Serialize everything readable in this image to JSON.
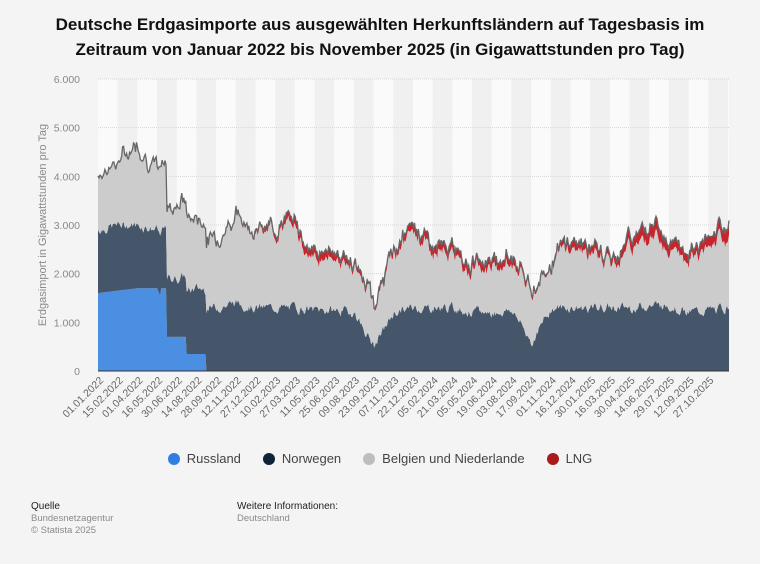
{
  "title": "Deutsche Erdgasimporte aus ausgewählten Herkunftsländern auf Tagesbasis im Zeitraum von Januar 2022 bis November 2025 (in Gigawattstunden pro Tag)",
  "title_line1": "Deutsche Erdgasimporte aus ausgewählten Herkunftsländern auf Tagesbasis im",
  "title_line2": "Zeitraum von Januar 2022 bis November 2025 (in Gigawattstunden pro Tag)",
  "colors": {
    "russland": "#4a8fe2",
    "norwegen": "#46566a",
    "belgien_niederlande": "#cccccc",
    "lng": "#c8242c",
    "outline": "#666666",
    "background": "#f4f4f4"
  },
  "legend": [
    {
      "label": "Russland",
      "color": "#2f7fe0"
    },
    {
      "label": "Norwegen",
      "color": "#0e2238"
    },
    {
      "label": "Belgien und Niederlande",
      "color": "#bdbdbd"
    },
    {
      "label": "LNG",
      "color": "#a81a1e"
    }
  ],
  "footer": {
    "source_heading": "Quelle",
    "source_lines": [
      "Bundesnetzagentur",
      "© Statista 2025"
    ],
    "info_heading": "Weitere Informationen:",
    "info_lines": [
      "Deutschland"
    ]
  },
  "chart_data": {
    "type": "area",
    "stacked": true,
    "title": "Deutsche Erdgasimporte aus ausgewählten Herkunftsländern auf Tagesbasis im Zeitraum von Januar 2022 bis November 2025 (in Gigawattstunden pro Tag)",
    "xlabel": "",
    "ylabel": "Erdgasimport in Gigawattstunden pro Tag",
    "ylim": [
      0,
      6000
    ],
    "yticks": [
      0,
      1000,
      2000,
      3000,
      4000,
      5000,
      6000
    ],
    "ytick_labels": [
      "0",
      "1.000",
      "2.000",
      "3.000",
      "4.000",
      "5.000",
      "6.000"
    ],
    "xtick_labels": [
      "01.01.2022",
      "15.02.2022",
      "01.04.2022",
      "16.05.2022",
      "30.06.2022",
      "14.08.2022",
      "28.09.2022",
      "12.11.2022",
      "27.12.2022",
      "10.02.2023",
      "27.03.2023",
      "11.05.2023",
      "25.06.2023",
      "09.08.2023",
      "23.09.2023",
      "07.11.2023",
      "22.12.2023",
      "05.02.2024",
      "21.03.2024",
      "05.05.2024",
      "19.06.2024",
      "03.08.2024",
      "17.09.2024",
      "01.11.2024",
      "16.12.2024",
      "30.01.2025",
      "16.03.2025",
      "30.04.2025",
      "14.06.2025",
      "29.07.2025",
      "12.09.2025",
      "27.10.2025"
    ],
    "grid": true,
    "legend_position": "bottom",
    "x": [
      "01.01.2022",
      "15.02.2022",
      "01.04.2022",
      "16.05.2022",
      "30.06.2022",
      "14.08.2022",
      "28.09.2022",
      "12.11.2022",
      "27.12.2022",
      "10.02.2023",
      "27.03.2023",
      "11.05.2023",
      "25.06.2023",
      "09.08.2023",
      "23.09.2023",
      "07.11.2023",
      "22.12.2023",
      "05.02.2024",
      "21.03.2024",
      "05.05.2024",
      "19.06.2024",
      "03.08.2024",
      "17.09.2024",
      "01.11.2024",
      "16.12.2024",
      "30.01.2025",
      "16.03.2025",
      "30.04.2025",
      "14.06.2025",
      "29.07.2025",
      "12.09.2025",
      "27.10.2025",
      "30.11.2025"
    ],
    "series": [
      {
        "name": "Russland",
        "values": [
          1600,
          1650,
          1700,
          1700,
          700,
          350,
          0,
          0,
          0,
          0,
          0,
          0,
          0,
          0,
          0,
          0,
          0,
          0,
          0,
          0,
          0,
          0,
          0,
          0,
          0,
          0,
          0,
          0,
          0,
          0,
          0,
          0,
          0
        ]
      },
      {
        "name": "Norwegen",
        "values": [
          1300,
          1350,
          1300,
          1200,
          1200,
          1350,
          1300,
          1400,
          1300,
          1300,
          1300,
          1250,
          1250,
          1200,
          500,
          1200,
          1300,
          1300,
          1300,
          1200,
          1200,
          1250,
          600,
          1300,
          1300,
          1300,
          1300,
          1300,
          1350,
          1350,
          1200,
          1250,
          1300
        ]
      },
      {
        "name": "Belgien und Niederlande",
        "values": [
          1100,
          1300,
          1700,
          1200,
          1600,
          1400,
          1400,
          1800,
          1550,
          1600,
          1650,
          1000,
          1100,
          900,
          850,
          1200,
          1550,
          1150,
          1050,
          950,
          950,
          1000,
          1050,
          950,
          1250,
          1150,
          900,
          1300,
          1500,
          1250,
          1150,
          1250,
          1450
        ]
      },
      {
        "name": "LNG",
        "values": [
          0,
          0,
          0,
          0,
          0,
          0,
          0,
          0,
          50,
          100,
          150,
          150,
          150,
          100,
          50,
          100,
          150,
          150,
          150,
          150,
          150,
          150,
          50,
          50,
          150,
          150,
          100,
          200,
          250,
          200,
          150,
          200,
          250
        ]
      }
    ]
  }
}
